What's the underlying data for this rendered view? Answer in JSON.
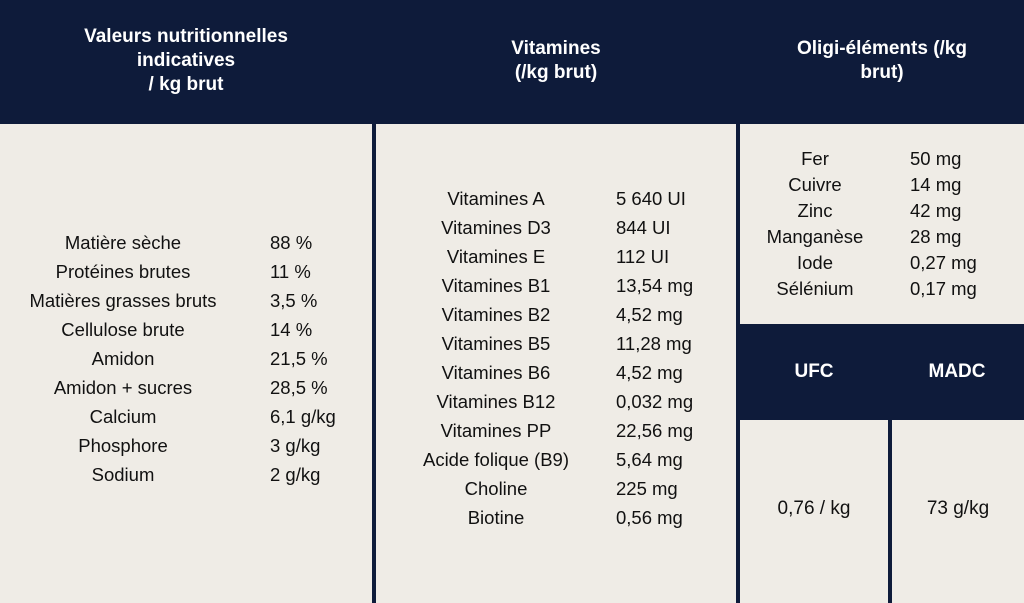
{
  "headers": {
    "nutrition": [
      "Valeurs nutritionnelles",
      "indicatives",
      "/ kg brut"
    ],
    "vitamins": [
      "Vitamines",
      "(/kg brut)"
    ],
    "trace": [
      "Oligi-éléments (/kg",
      "brut)"
    ],
    "ufc": "UFC",
    "madc": "MADC"
  },
  "nutrition": [
    {
      "name": "Matière sèche",
      "value": "88 %"
    },
    {
      "name": "Protéines brutes",
      "value": "11 %"
    },
    {
      "name": "Matières grasses bruts",
      "value": "3,5 %"
    },
    {
      "name": "Cellulose brute",
      "value": "14 %"
    },
    {
      "name": "Amidon",
      "value": "21,5 %"
    },
    {
      "name": "Amidon + sucres",
      "value": "28,5 %"
    },
    {
      "name": "Calcium",
      "value": "6,1 g/kg"
    },
    {
      "name": "Phosphore",
      "value": "3 g/kg"
    },
    {
      "name": "Sodium",
      "value": "2 g/kg"
    }
  ],
  "vitamins": [
    {
      "name": "Vitamines A",
      "value": "5 640 UI"
    },
    {
      "name": "Vitamines D3",
      "value": "844 UI"
    },
    {
      "name": "Vitamines E",
      "value": "112 UI"
    },
    {
      "name": "Vitamines B1",
      "value": "13,54 mg"
    },
    {
      "name": "Vitamines B2",
      "value": "4,52 mg"
    },
    {
      "name": "Vitamines B5",
      "value": "11,28 mg"
    },
    {
      "name": "Vitamines B6",
      "value": "4,52 mg"
    },
    {
      "name": "Vitamines B12",
      "value": "0,032 mg"
    },
    {
      "name": "Vitamines PP",
      "value": "22,56 mg"
    },
    {
      "name": "Acide folique (B9)",
      "value": "5,64 mg"
    },
    {
      "name": "Choline",
      "value": "225 mg"
    },
    {
      "name": "Biotine",
      "value": "0,56 mg"
    }
  ],
  "trace": [
    {
      "name": "Fer",
      "value": "50 mg"
    },
    {
      "name": "Cuivre",
      "value": "14 mg"
    },
    {
      "name": "Zinc",
      "value": "42 mg"
    },
    {
      "name": "Manganèse",
      "value": "28 mg"
    },
    {
      "name": "Iode",
      "value": "0,27 mg"
    },
    {
      "name": "Sélénium",
      "value": "0,17 mg"
    }
  ],
  "ufc_value": "0,76 / kg",
  "madc_value": "73 g/kg"
}
